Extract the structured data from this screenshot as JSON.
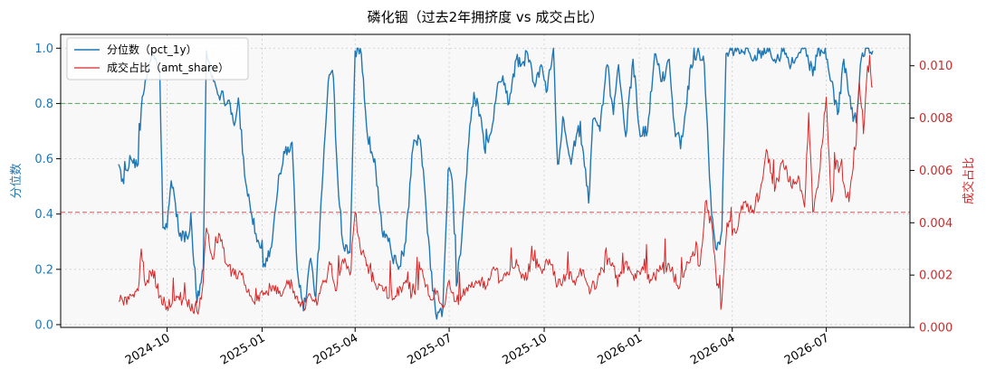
{
  "chart_data": {
    "type": "line",
    "title": "磷化铟（过去2年拥挤度 vs 成交占比）",
    "x_start": "2024-08-15",
    "x_end": "2026-08-15",
    "xlim": [
      "2024-06-20",
      "2026-09-20"
    ],
    "x_tick_labels": [
      "2024-10",
      "2025-01",
      "2025-04",
      "2025-07",
      "2025-10",
      "2026-01",
      "2026-04",
      "2026-07"
    ],
    "x_tick_dates": [
      "2024-10-01",
      "2025-01-01",
      "2025-04-01",
      "2025-07-01",
      "2025-10-01",
      "2026-01-01",
      "2026-04-01",
      "2026-07-01"
    ],
    "y_left": {
      "label": "分位数",
      "lim": [
        -0.01,
        1.05
      ],
      "ticks": [
        0.0,
        0.2,
        0.4,
        0.6,
        0.8,
        1.0
      ],
      "tick_labels": [
        "0.0",
        "0.2",
        "0.4",
        "0.6",
        "0.8",
        "1.0"
      ],
      "hline": 0.8
    },
    "y_right": {
      "label": "成交占比",
      "lim": [
        0.0,
        0.0112
      ],
      "ticks": [
        0.0,
        0.002,
        0.004,
        0.006,
        0.008,
        0.01
      ],
      "tick_labels": [
        "0.000",
        "0.002",
        "0.004",
        "0.006",
        "0.008",
        "0.010"
      ],
      "hline": 0.0044
    },
    "grid": true,
    "legend_position": "top-left",
    "series": [
      {
        "name": "分位数（pct_1y）",
        "axis": "left",
        "color": "#1f77b4",
        "anchors": [
          [
            "2024-08-15",
            0.58
          ],
          [
            "2024-08-20",
            0.51
          ],
          [
            "2024-08-27",
            0.6
          ],
          [
            "2024-09-03",
            0.58
          ],
          [
            "2024-09-06",
            0.78
          ],
          [
            "2024-09-12",
            0.91
          ],
          [
            "2024-09-17",
            0.99
          ],
          [
            "2024-09-24",
            0.9
          ],
          [
            "2024-09-27",
            0.35
          ],
          [
            "2024-10-01",
            0.35
          ],
          [
            "2024-10-05",
            0.52
          ],
          [
            "2024-10-09",
            0.44
          ],
          [
            "2024-10-13",
            0.32
          ],
          [
            "2024-10-20",
            0.32
          ],
          [
            "2024-10-25",
            0.34
          ],
          [
            "2024-10-30",
            0.08
          ],
          [
            "2024-11-05",
            0.2
          ],
          [
            "2024-11-08",
            0.99
          ],
          [
            "2024-11-15",
            0.88
          ],
          [
            "2024-11-22",
            0.83
          ],
          [
            "2024-12-01",
            0.8
          ],
          [
            "2024-12-05",
            0.72
          ],
          [
            "2024-12-09",
            0.82
          ],
          [
            "2024-12-15",
            0.54
          ],
          [
            "2024-12-20",
            0.44
          ],
          [
            "2024-12-27",
            0.3
          ],
          [
            "2025-01-03",
            0.22
          ],
          [
            "2025-01-10",
            0.28
          ],
          [
            "2025-01-17",
            0.54
          ],
          [
            "2025-01-23",
            0.62
          ],
          [
            "2025-01-30",
            0.66
          ],
          [
            "2025-02-04",
            0.2
          ],
          [
            "2025-02-10",
            0.05
          ],
          [
            "2025-02-17",
            0.24
          ],
          [
            "2025-02-22",
            0.1
          ],
          [
            "2025-03-01",
            0.56
          ],
          [
            "2025-03-06",
            0.88
          ],
          [
            "2025-03-10",
            0.92
          ],
          [
            "2025-03-15",
            0.54
          ],
          [
            "2025-03-20",
            0.3
          ],
          [
            "2025-03-27",
            0.26
          ],
          [
            "2025-04-01",
            0.99
          ],
          [
            "2025-04-07",
            0.98
          ],
          [
            "2025-04-13",
            0.68
          ],
          [
            "2025-04-20",
            0.6
          ],
          [
            "2025-04-27",
            0.34
          ],
          [
            "2025-05-02",
            0.32
          ],
          [
            "2025-05-06",
            0.26
          ],
          [
            "2025-05-13",
            0.2
          ],
          [
            "2025-05-20",
            0.3
          ],
          [
            "2025-05-27",
            0.64
          ],
          [
            "2025-06-03",
            0.67
          ],
          [
            "2025-06-08",
            0.46
          ],
          [
            "2025-06-13",
            0.2
          ],
          [
            "2025-06-19",
            0.02
          ],
          [
            "2025-06-25",
            0.06
          ],
          [
            "2025-06-30",
            0.56
          ],
          [
            "2025-07-04",
            0.52
          ],
          [
            "2025-07-08",
            0.14
          ],
          [
            "2025-07-13",
            0.3
          ],
          [
            "2025-07-20",
            0.66
          ],
          [
            "2025-07-25",
            0.84
          ],
          [
            "2025-07-31",
            0.76
          ],
          [
            "2025-08-05",
            0.62
          ],
          [
            "2025-08-11",
            0.7
          ],
          [
            "2025-08-16",
            0.84
          ],
          [
            "2025-08-22",
            0.9
          ],
          [
            "2025-08-28",
            0.8
          ],
          [
            "2025-09-04",
            0.96
          ],
          [
            "2025-09-09",
            0.94
          ],
          [
            "2025-09-15",
            0.98
          ],
          [
            "2025-09-22",
            0.86
          ],
          [
            "2025-09-28",
            0.94
          ],
          [
            "2025-10-03",
            0.84
          ],
          [
            "2025-10-10",
            1.0
          ],
          [
            "2025-10-14",
            0.58
          ],
          [
            "2025-10-20",
            0.74
          ],
          [
            "2025-10-27",
            0.58
          ],
          [
            "2025-11-03",
            0.72
          ],
          [
            "2025-11-08",
            0.62
          ],
          [
            "2025-11-13",
            0.44
          ],
          [
            "2025-11-17",
            0.74
          ],
          [
            "2025-11-24",
            0.7
          ],
          [
            "2025-12-01",
            0.94
          ],
          [
            "2025-12-07",
            0.76
          ],
          [
            "2025-12-12",
            0.94
          ],
          [
            "2025-12-19",
            0.68
          ],
          [
            "2025-12-26",
            0.96
          ],
          [
            "2026-01-02",
            0.68
          ],
          [
            "2026-01-09",
            0.7
          ],
          [
            "2026-01-16",
            0.98
          ],
          [
            "2026-01-23",
            0.88
          ],
          [
            "2026-01-30",
            0.96
          ],
          [
            "2026-02-05",
            0.68
          ],
          [
            "2026-02-12",
            0.68
          ],
          [
            "2026-02-20",
            0.94
          ],
          [
            "2026-02-27",
            1.0
          ],
          [
            "2026-03-05",
            0.94
          ],
          [
            "2026-03-12",
            0.4
          ],
          [
            "2026-03-17",
            0.27
          ],
          [
            "2026-03-22",
            0.34
          ],
          [
            "2026-03-26",
            0.98
          ],
          [
            "2026-04-01",
            1.0
          ],
          [
            "2026-04-08",
            0.98
          ],
          [
            "2026-04-15",
            1.0
          ],
          [
            "2026-04-22",
            0.96
          ],
          [
            "2026-04-30",
            0.99
          ],
          [
            "2026-05-07",
            1.0
          ],
          [
            "2026-05-14",
            0.96
          ],
          [
            "2026-05-21",
            1.0
          ],
          [
            "2026-05-28",
            0.94
          ],
          [
            "2026-06-04",
            0.98
          ],
          [
            "2026-06-11",
            1.0
          ],
          [
            "2026-06-18",
            0.9
          ],
          [
            "2026-06-24",
            1.0
          ],
          [
            "2026-07-01",
            0.96
          ],
          [
            "2026-07-06",
            0.88
          ],
          [
            "2026-07-12",
            0.76
          ],
          [
            "2026-07-18",
            0.96
          ],
          [
            "2026-07-25",
            0.78
          ],
          [
            "2026-07-30",
            0.73
          ],
          [
            "2026-08-03",
            0.94
          ],
          [
            "2026-08-08",
            1.0
          ],
          [
            "2026-08-15",
            0.99
          ]
        ]
      },
      {
        "name": "成交占比（amt_share）",
        "axis": "right",
        "color": "#d62728",
        "anchors": [
          [
            "2024-08-15",
            0.001
          ],
          [
            "2024-08-28",
            0.0012
          ],
          [
            "2024-09-03",
            0.0014
          ],
          [
            "2024-09-06",
            0.003
          ],
          [
            "2024-09-10",
            0.0016
          ],
          [
            "2024-09-17",
            0.0022
          ],
          [
            "2024-09-24",
            0.0012
          ],
          [
            "2024-10-01",
            0.0008
          ],
          [
            "2024-10-10",
            0.0012
          ],
          [
            "2024-10-20",
            0.001
          ],
          [
            "2024-10-30",
            0.0006
          ],
          [
            "2024-11-04",
            0.0014
          ],
          [
            "2024-11-08",
            0.0038
          ],
          [
            "2024-11-14",
            0.0026
          ],
          [
            "2024-11-20",
            0.0036
          ],
          [
            "2024-11-28",
            0.0024
          ],
          [
            "2024-12-05",
            0.002
          ],
          [
            "2024-12-12",
            0.002
          ],
          [
            "2024-12-20",
            0.0012
          ],
          [
            "2024-12-29",
            0.001
          ],
          [
            "2025-01-05",
            0.0014
          ],
          [
            "2025-01-14",
            0.0016
          ],
          [
            "2025-01-20",
            0.0012
          ],
          [
            "2025-01-27",
            0.0018
          ],
          [
            "2025-02-03",
            0.0012
          ],
          [
            "2025-02-10",
            0.0008
          ],
          [
            "2025-02-17",
            0.0012
          ],
          [
            "2025-02-24",
            0.001
          ],
          [
            "2025-03-03",
            0.0018
          ],
          [
            "2025-03-08",
            0.0024
          ],
          [
            "2025-03-13",
            0.0014
          ],
          [
            "2025-03-20",
            0.0026
          ],
          [
            "2025-03-27",
            0.002
          ],
          [
            "2025-04-01",
            0.0044
          ],
          [
            "2025-04-06",
            0.003
          ],
          [
            "2025-04-13",
            0.0024
          ],
          [
            "2025-04-21",
            0.0016
          ],
          [
            "2025-04-28",
            0.0014
          ],
          [
            "2025-05-10",
            0.0012
          ],
          [
            "2025-05-20",
            0.0018
          ],
          [
            "2025-05-28",
            0.0014
          ],
          [
            "2025-06-05",
            0.0022
          ],
          [
            "2025-06-12",
            0.0012
          ],
          [
            "2025-06-19",
            0.0014
          ],
          [
            "2025-06-26",
            0.0008
          ],
          [
            "2025-07-01",
            0.0018
          ],
          [
            "2025-07-07",
            0.001
          ],
          [
            "2025-07-14",
            0.0012
          ],
          [
            "2025-07-21",
            0.0016
          ],
          [
            "2025-07-30",
            0.0018
          ],
          [
            "2025-08-07",
            0.0016
          ],
          [
            "2025-08-14",
            0.0022
          ],
          [
            "2025-08-20",
            0.0018
          ],
          [
            "2025-08-28",
            0.002
          ],
          [
            "2025-09-04",
            0.0026
          ],
          [
            "2025-09-12",
            0.0018
          ],
          [
            "2025-09-20",
            0.0026
          ],
          [
            "2025-09-28",
            0.0022
          ],
          [
            "2025-10-06",
            0.0026
          ],
          [
            "2025-10-14",
            0.0016
          ],
          [
            "2025-10-22",
            0.002
          ],
          [
            "2025-10-30",
            0.0018
          ],
          [
            "2025-11-07",
            0.0022
          ],
          [
            "2025-11-15",
            0.0014
          ],
          [
            "2025-11-24",
            0.002
          ],
          [
            "2025-12-02",
            0.0026
          ],
          [
            "2025-12-10",
            0.002
          ],
          [
            "2025-12-18",
            0.0024
          ],
          [
            "2025-12-26",
            0.002
          ],
          [
            "2026-01-05",
            0.0022
          ],
          [
            "2026-01-13",
            0.0018
          ],
          [
            "2026-01-22",
            0.0022
          ],
          [
            "2026-01-30",
            0.0024
          ],
          [
            "2026-02-07",
            0.0016
          ],
          [
            "2026-02-15",
            0.0022
          ],
          [
            "2026-02-24",
            0.0028
          ],
          [
            "2026-03-01",
            0.0024
          ],
          [
            "2026-03-06",
            0.0048
          ],
          [
            "2026-03-12",
            0.004
          ],
          [
            "2026-03-17",
            0.0016
          ],
          [
            "2026-03-22",
            0.001
          ],
          [
            "2026-03-27",
            0.004
          ],
          [
            "2026-04-04",
            0.0036
          ],
          [
            "2026-04-12",
            0.0048
          ],
          [
            "2026-04-20",
            0.0044
          ],
          [
            "2026-04-28",
            0.0052
          ],
          [
            "2026-05-04",
            0.0068
          ],
          [
            "2026-05-12",
            0.0052
          ],
          [
            "2026-05-20",
            0.0064
          ],
          [
            "2026-05-28",
            0.0054
          ],
          [
            "2026-06-04",
            0.0058
          ],
          [
            "2026-06-10",
            0.0046
          ],
          [
            "2026-06-14",
            0.0082
          ],
          [
            "2026-06-18",
            0.0044
          ],
          [
            "2026-06-24",
            0.0058
          ],
          [
            "2026-07-01",
            0.0088
          ],
          [
            "2026-07-06",
            0.0048
          ],
          [
            "2026-07-11",
            0.0064
          ],
          [
            "2026-07-17",
            0.0056
          ],
          [
            "2026-07-23",
            0.0048
          ],
          [
            "2026-07-29",
            0.0068
          ],
          [
            "2026-08-02",
            0.0094
          ],
          [
            "2026-08-06",
            0.0074
          ],
          [
            "2026-08-10",
            0.01
          ],
          [
            "2026-08-15",
            0.0092
          ]
        ]
      }
    ]
  }
}
